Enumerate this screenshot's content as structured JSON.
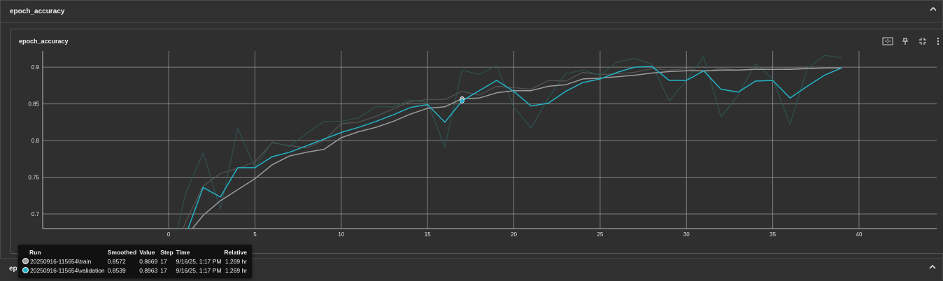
{
  "section": {
    "title": "epoch_accuracy"
  },
  "card": {
    "title": "epoch_accuracy"
  },
  "second_section": {
    "title": "ep"
  },
  "icons": {
    "fit": "fit-domain-icon",
    "pin": "pin-icon",
    "fullscreen": "fullscreen-icon",
    "more": "more-vert-icon",
    "collapse": "chevron-up-icon"
  },
  "colors": {
    "train": "#9c9c9c",
    "validation": "#22b3c7",
    "grid": "#9a9a9a",
    "background": "#2f2f2f"
  },
  "tooltip": {
    "headers": [
      "Run",
      "Smoothed",
      "Value",
      "Step",
      "Time",
      "Relative"
    ],
    "rows": [
      {
        "run": "20250916-115654\\train",
        "smoothed": "0.8572",
        "value": "0.8669",
        "step": "17",
        "time": "9/16/25, 1:17 PM",
        "relative": "1.269 hr",
        "color": "#9c9c9c"
      },
      {
        "run": "20250916-115654\\validation",
        "smoothed": "0.8539",
        "value": "0.8963",
        "step": "17",
        "time": "9/16/25, 1:17 PM",
        "relative": "1.269 hr",
        "color": "#22b3c7"
      }
    ]
  },
  "chart_data": {
    "type": "line",
    "title": "epoch_accuracy",
    "xlim": [
      -7.3,
      44.5
    ],
    "ylim": [
      0.68,
      0.922
    ],
    "xticks": [
      0,
      5,
      10,
      15,
      20,
      25,
      30,
      35,
      40
    ],
    "yticks": [
      0.7,
      0.75,
      0.8,
      0.85,
      0.9
    ],
    "ytick_labels": [
      "0.7",
      "0.75",
      "0.8",
      "0.85",
      "0.9"
    ],
    "xtick_labels": [
      "0",
      "5",
      "10",
      "15",
      "20",
      "25",
      "30",
      "35",
      "40"
    ],
    "grid": true,
    "hover_step": 17,
    "series": [
      {
        "name": "20250916-115654\\train",
        "smoothed": [
          0.635,
          0.669,
          0.698,
          0.718,
          0.733,
          0.748,
          0.767,
          0.779,
          0.784,
          0.788,
          0.804,
          0.812,
          0.818,
          0.826,
          0.836,
          0.844,
          0.846,
          0.857,
          0.858,
          0.865,
          0.868,
          0.868,
          0.874,
          0.876,
          0.884,
          0.885,
          0.887,
          0.889,
          0.892,
          0.894,
          0.895,
          0.895,
          0.896,
          0.896,
          0.897,
          0.897,
          0.897,
          0.898,
          0.899,
          0.899
        ],
        "raw": [
          0.628,
          0.69,
          0.738,
          0.755,
          0.762,
          0.771,
          0.797,
          0.793,
          0.79,
          0.8,
          0.823,
          0.825,
          0.833,
          0.843,
          0.853,
          0.856,
          0.856,
          0.867,
          0.862,
          0.874,
          0.872,
          0.87,
          0.882,
          0.881,
          0.893,
          0.89,
          0.891,
          0.893,
          0.898,
          0.896,
          0.898,
          0.894,
          0.898,
          0.896,
          0.898,
          0.897,
          0.898,
          0.899,
          0.9,
          0.9
        ]
      },
      {
        "name": "20250916-115654\\validation",
        "smoothed": [
          0.634,
          0.672,
          0.736,
          0.723,
          0.763,
          0.763,
          0.778,
          0.784,
          0.793,
          0.802,
          0.811,
          0.818,
          0.826,
          0.835,
          0.845,
          0.849,
          0.825,
          0.854,
          0.868,
          0.882,
          0.867,
          0.847,
          0.851,
          0.867,
          0.879,
          0.884,
          0.893,
          0.9,
          0.901,
          0.882,
          0.882,
          0.895,
          0.87,
          0.866,
          0.881,
          0.882,
          0.858,
          0.874,
          0.889,
          0.899
        ],
        "raw": [
          0.63,
          0.729,
          0.783,
          0.706,
          0.817,
          0.763,
          0.798,
          0.792,
          0.81,
          0.826,
          0.826,
          0.831,
          0.846,
          0.846,
          0.855,
          0.852,
          0.791,
          0.896,
          0.89,
          0.902,
          0.846,
          0.817,
          0.858,
          0.891,
          0.896,
          0.889,
          0.907,
          0.912,
          0.904,
          0.854,
          0.882,
          0.914,
          0.832,
          0.862,
          0.905,
          0.884,
          0.822,
          0.898,
          0.916,
          0.913
        ]
      }
    ]
  }
}
